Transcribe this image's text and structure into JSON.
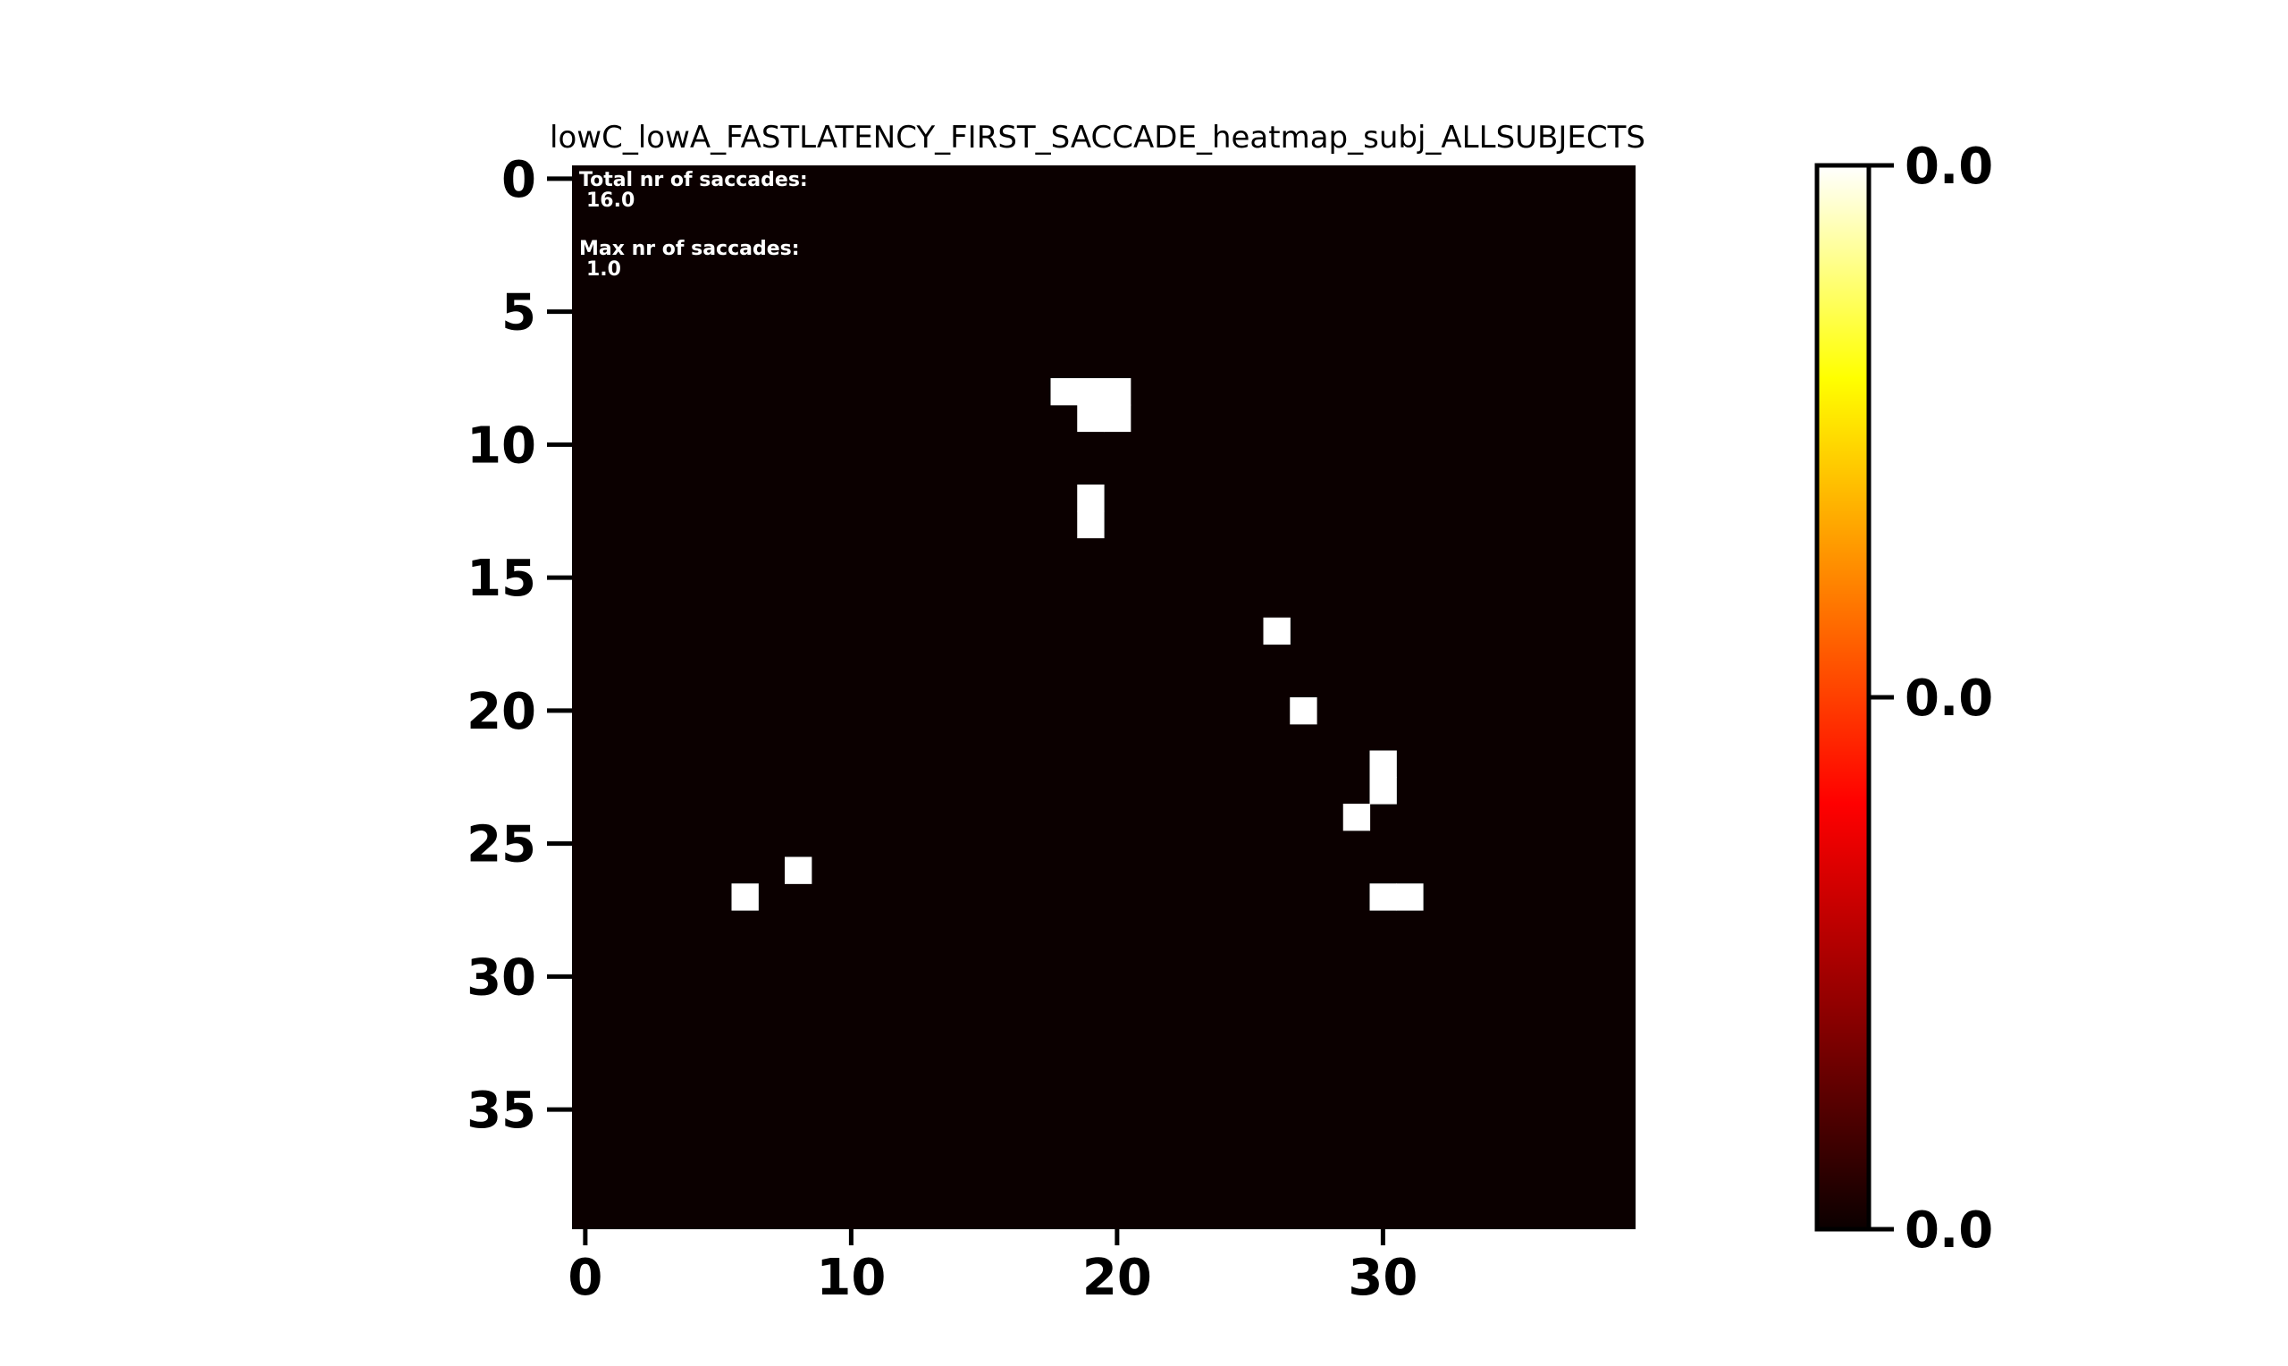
{
  "chart_data": {
    "type": "heatmap",
    "title": "lowC_lowA_FASTLATENCY_FIRST_SACCADE_heatmap_subj_ALLSUBJECTS",
    "grid_size": [
      40,
      40
    ],
    "x_ticks": [
      0,
      10,
      20,
      30
    ],
    "y_ticks": [
      0,
      5,
      10,
      15,
      20,
      25,
      30,
      35
    ],
    "annotation": {
      "total_label": "Total nr of saccades:",
      "total_value": "16.0",
      "max_label": "Max nr of saccades:",
      "max_value": "1.0"
    },
    "colormap": "hot",
    "background_value": 0,
    "cells": [
      {
        "x": 18,
        "y": 8,
        "value": 1
      },
      {
        "x": 19,
        "y": 8,
        "value": 1
      },
      {
        "x": 20,
        "y": 8,
        "value": 1
      },
      {
        "x": 19,
        "y": 9,
        "value": 1
      },
      {
        "x": 20,
        "y": 9,
        "value": 1
      },
      {
        "x": 19,
        "y": 12,
        "value": 1
      },
      {
        "x": 19,
        "y": 13,
        "value": 1
      },
      {
        "x": 26,
        "y": 17,
        "value": 1
      },
      {
        "x": 27,
        "y": 20,
        "value": 1
      },
      {
        "x": 30,
        "y": 22,
        "value": 1
      },
      {
        "x": 30,
        "y": 23,
        "value": 1
      },
      {
        "x": 29,
        "y": 24,
        "value": 1
      },
      {
        "x": 8,
        "y": 26,
        "value": 1
      },
      {
        "x": 6,
        "y": 27,
        "value": 1
      },
      {
        "x": 30,
        "y": 27,
        "value": 1
      },
      {
        "x": 31,
        "y": 27,
        "value": 1
      }
    ],
    "colorbar": {
      "tick_labels": [
        "0.0",
        "0.0",
        "0.0"
      ]
    },
    "colors": {
      "background": "#0b0000",
      "cell": "#ffffff",
      "colorbar_stops": [
        "#0b0000",
        "#8b0000",
        "#ff0000",
        "#ff7f00",
        "#ffff00",
        "#ffffff"
      ]
    }
  }
}
